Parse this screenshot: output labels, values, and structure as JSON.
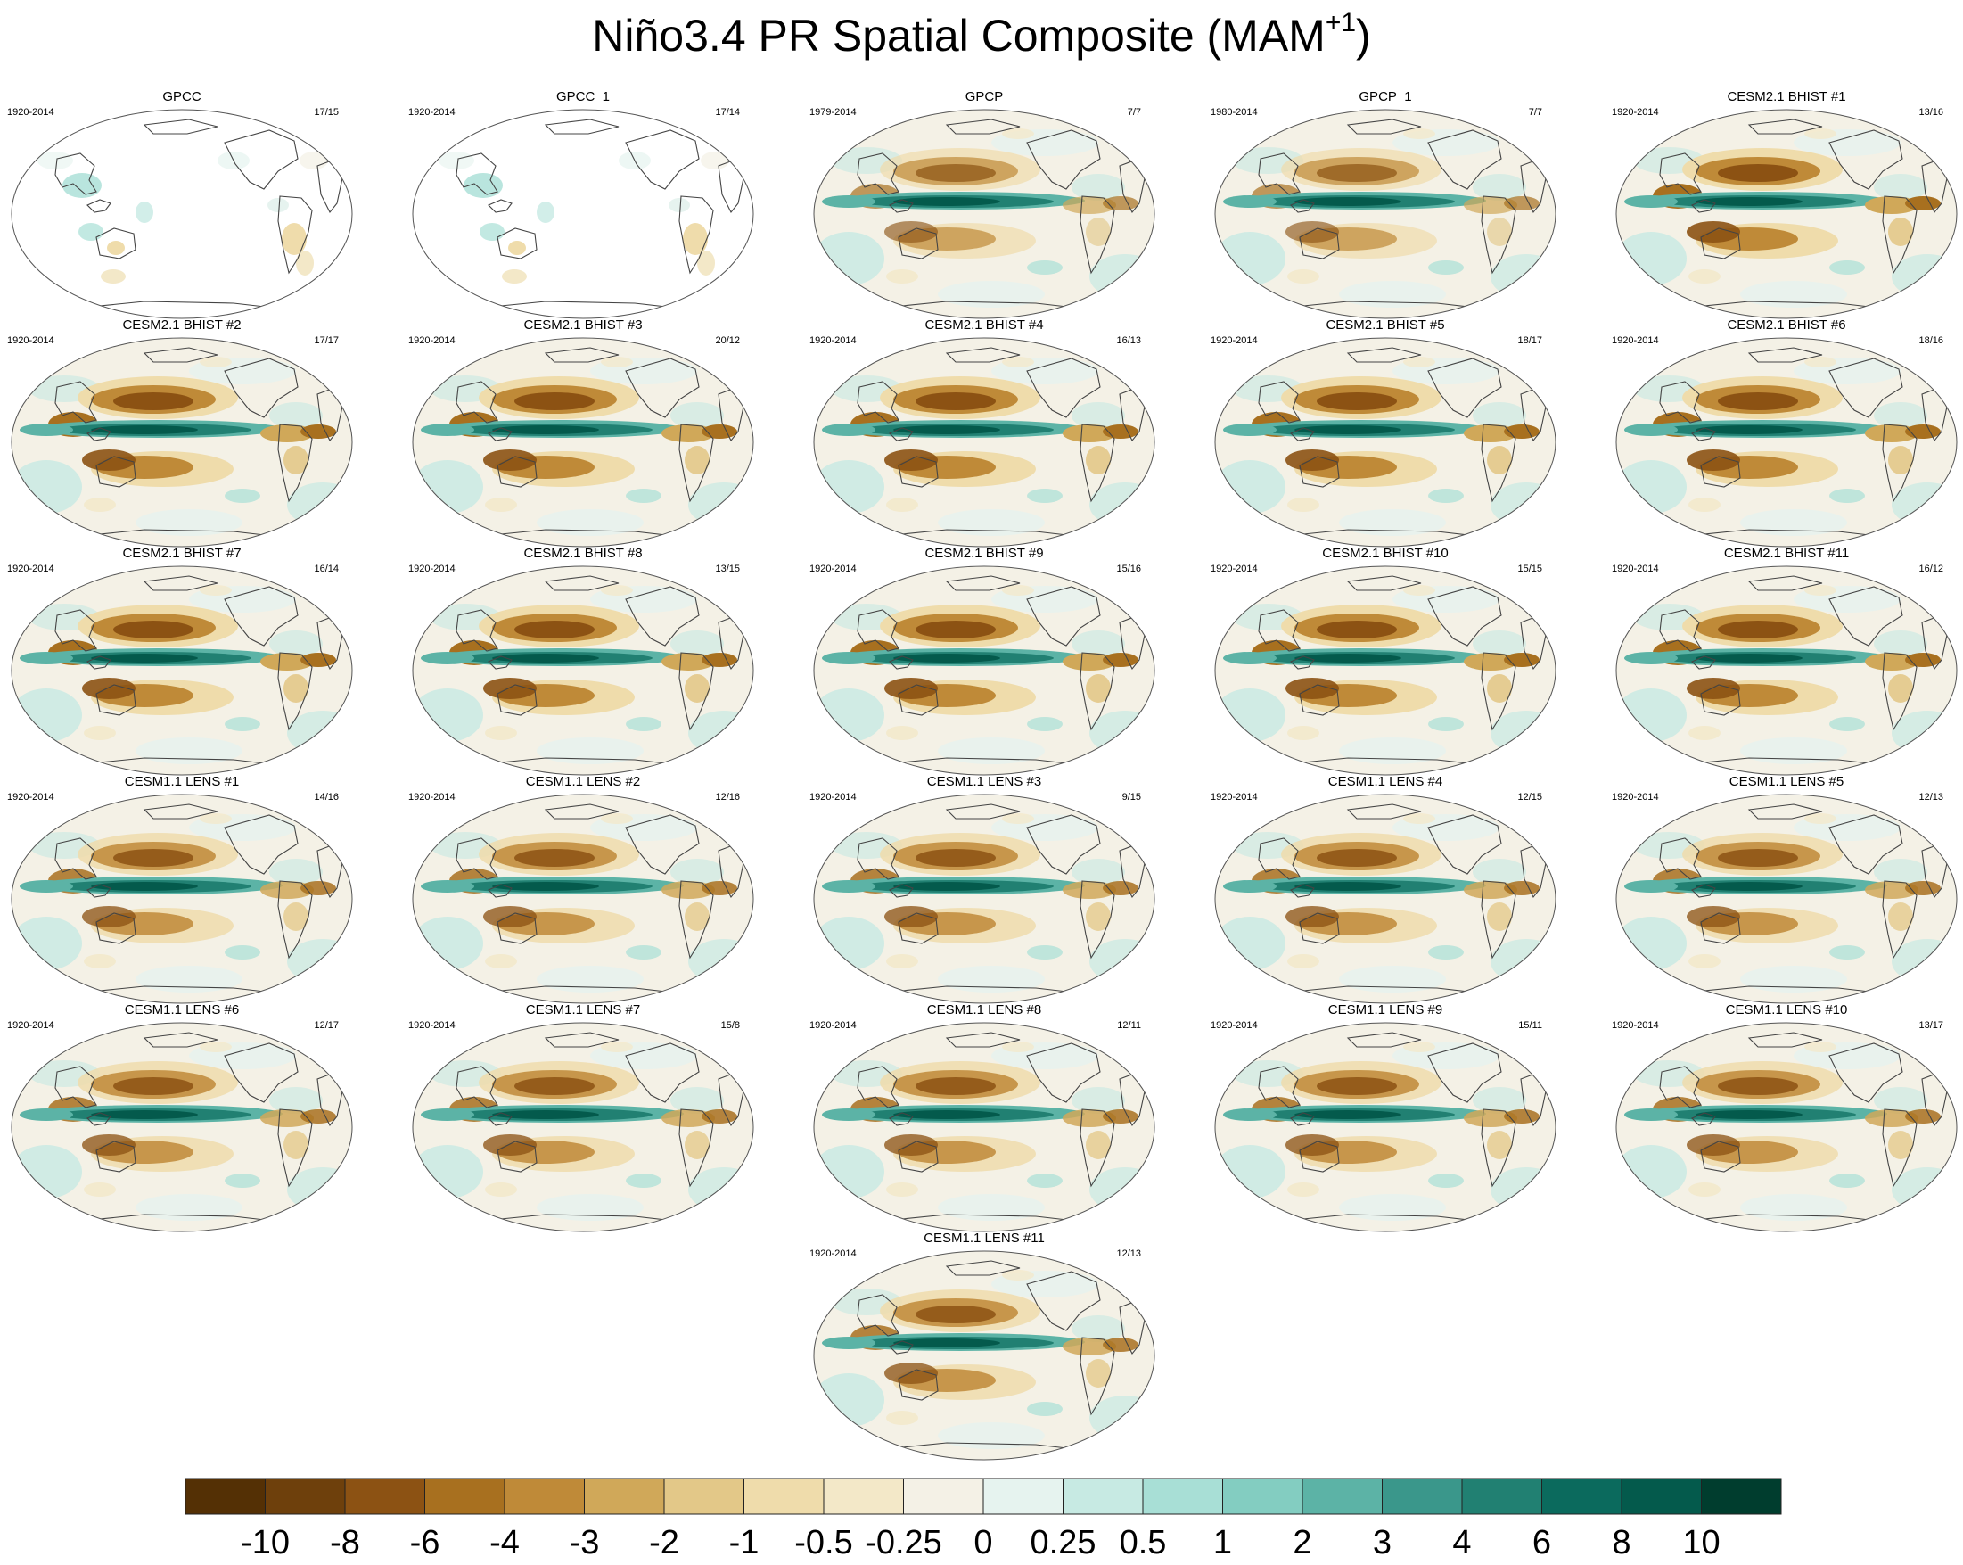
{
  "title_main": "Niño3.4 PR Spatial Composite (MAM",
  "title_sup": "+1",
  "title_end": ")",
  "chart_data": {
    "type": "heatmap",
    "variable": "PR",
    "panels": [
      {
        "title": "GPCC",
        "years": "1920-2014",
        "count": "17/15",
        "kind": "land"
      },
      {
        "title": "GPCC_1",
        "years": "1920-2014",
        "count": "17/14",
        "kind": "land"
      },
      {
        "title": "GPCP",
        "years": "1979-2014",
        "count": "7/7",
        "kind": "obs"
      },
      {
        "title": "GPCP_1",
        "years": "1980-2014",
        "count": "7/7",
        "kind": "obs"
      },
      {
        "title": "CESM2.1 BHIST #1",
        "years": "1920-2014",
        "count": "13/16",
        "kind": "cesm2"
      },
      {
        "title": "CESM2.1 BHIST #2",
        "years": "1920-2014",
        "count": "17/17",
        "kind": "cesm2"
      },
      {
        "title": "CESM2.1 BHIST #3",
        "years": "1920-2014",
        "count": "20/12",
        "kind": "cesm2"
      },
      {
        "title": "CESM2.1 BHIST #4",
        "years": "1920-2014",
        "count": "16/13",
        "kind": "cesm2"
      },
      {
        "title": "CESM2.1 BHIST #5",
        "years": "1920-2014",
        "count": "18/17",
        "kind": "cesm2"
      },
      {
        "title": "CESM2.1 BHIST #6",
        "years": "1920-2014",
        "count": "18/16",
        "kind": "cesm2"
      },
      {
        "title": "CESM2.1 BHIST #7",
        "years": "1920-2014",
        "count": "16/14",
        "kind": "cesm2"
      },
      {
        "title": "CESM2.1 BHIST #8",
        "years": "1920-2014",
        "count": "13/15",
        "kind": "cesm2"
      },
      {
        "title": "CESM2.1 BHIST #9",
        "years": "1920-2014",
        "count": "15/16",
        "kind": "cesm2"
      },
      {
        "title": "CESM2.1 BHIST #10",
        "years": "1920-2014",
        "count": "15/15",
        "kind": "cesm2"
      },
      {
        "title": "CESM2.1 BHIST #11",
        "years": "1920-2014",
        "count": "16/12",
        "kind": "cesm2"
      },
      {
        "title": "CESM1.1 LENS #1",
        "years": "1920-2014",
        "count": "14/16",
        "kind": "cesm1"
      },
      {
        "title": "CESM1.1 LENS #2",
        "years": "1920-2014",
        "count": "12/16",
        "kind": "cesm1"
      },
      {
        "title": "CESM1.1 LENS #3",
        "years": "1920-2014",
        "count": "9/15",
        "kind": "cesm1"
      },
      {
        "title": "CESM1.1 LENS #4",
        "years": "1920-2014",
        "count": "12/15",
        "kind": "cesm1"
      },
      {
        "title": "CESM1.1 LENS #5",
        "years": "1920-2014",
        "count": "12/13",
        "kind": "cesm1"
      },
      {
        "title": "CESM1.1 LENS #6",
        "years": "1920-2014",
        "count": "12/17",
        "kind": "cesm1"
      },
      {
        "title": "CESM1.1 LENS #7",
        "years": "1920-2014",
        "count": "15/8",
        "kind": "cesm1"
      },
      {
        "title": "CESM1.1 LENS #8",
        "years": "1920-2014",
        "count": "12/11",
        "kind": "cesm1"
      },
      {
        "title": "CESM1.1 LENS #9",
        "years": "1920-2014",
        "count": "15/11",
        "kind": "cesm1"
      },
      {
        "title": "CESM1.1 LENS #10",
        "years": "1920-2014",
        "count": "13/17",
        "kind": "cesm1"
      },
      {
        "title": "CESM1.1 LENS #11",
        "years": "1920-2014",
        "count": "12/13",
        "kind": "cesm1"
      }
    ],
    "colorbar": {
      "levels": [
        "-10",
        "-8",
        "-6",
        "-4",
        "-3",
        "-2",
        "-1",
        "-0.5",
        "-0.25",
        "0",
        "0.25",
        "0.5",
        "1",
        "2",
        "3",
        "4",
        "6",
        "8",
        "10"
      ],
      "colors": [
        "#543005",
        "#6e400c",
        "#8c5213",
        "#a8701f",
        "#bf8a38",
        "#d0a859",
        "#e3c888",
        "#efdcab",
        "#f3e8c8",
        "#f4f1e6",
        "#e6f3ef",
        "#c7eae3",
        "#a8dfd6",
        "#83cdc1",
        "#5cb3a6",
        "#3a978b",
        "#218072",
        "#0b6a5d",
        "#045a4c",
        "#003d2e"
      ]
    }
  }
}
